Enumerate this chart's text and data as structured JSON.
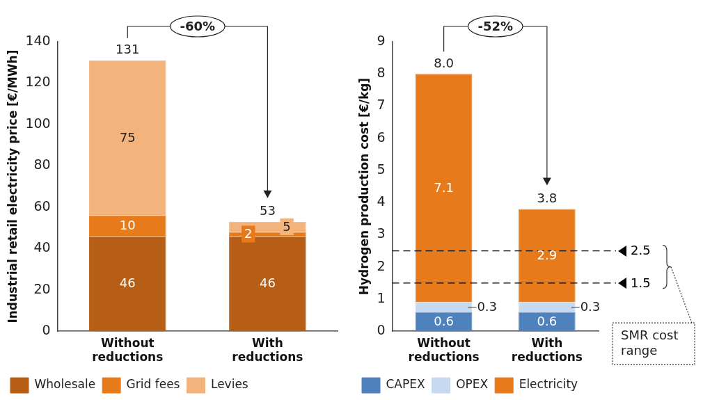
{
  "chart_data": [
    {
      "type": "bar",
      "stacked": true,
      "ylabel": "Industrial retail electricity price [€/MWh]",
      "categories": [
        "Without reductions",
        "With reductions"
      ],
      "series": [
        {
          "name": "Wholesale",
          "color": "#b65e15",
          "values": [
            46,
            46
          ]
        },
        {
          "name": "Grid fees",
          "color": "#e77a1b",
          "values": [
            10,
            2
          ]
        },
        {
          "name": "Levies",
          "color": "#f2b47c",
          "values": [
            75,
            5
          ]
        }
      ],
      "ylim": [
        0,
        140
      ],
      "yticks": [
        0,
        20,
        40,
        60,
        80,
        100,
        120,
        140
      ],
      "data_labels": true,
      "totals": [
        "131",
        "53"
      ],
      "annotations": [
        "-60%"
      ],
      "legend": "bottom"
    },
    {
      "type": "bar",
      "stacked": true,
      "ylabel": "Hydrogen production cost [€/kg]",
      "categories": [
        "Without reductions",
        "With reductions"
      ],
      "series": [
        {
          "name": "CAPEX",
          "color": "#4f81bd",
          "values": [
            0.6,
            0.6
          ]
        },
        {
          "name": "OPEX",
          "color": "#c6d9f1",
          "values": [
            0.3,
            0.3
          ]
        },
        {
          "name": "Electricity",
          "color": "#e77a1b",
          "values": [
            7.1,
            2.9
          ]
        }
      ],
      "ylim": [
        0,
        9
      ],
      "yticks": [
        0,
        1,
        2,
        3,
        4,
        5,
        6,
        7,
        8,
        9
      ],
      "data_labels": true,
      "totals": [
        "8.0",
        "3.8"
      ],
      "ref_lines": [
        {
          "axis": "y",
          "value": 2.5,
          "label": "2.5",
          "color": "#000000",
          "line_style": "dashed"
        },
        {
          "axis": "y",
          "value": 1.5,
          "label": "1.5",
          "color": "#000000",
          "line_style": "dashed"
        }
      ],
      "annotations": [
        "-52%",
        "SMR cost range"
      ],
      "legend": "bottom"
    }
  ]
}
